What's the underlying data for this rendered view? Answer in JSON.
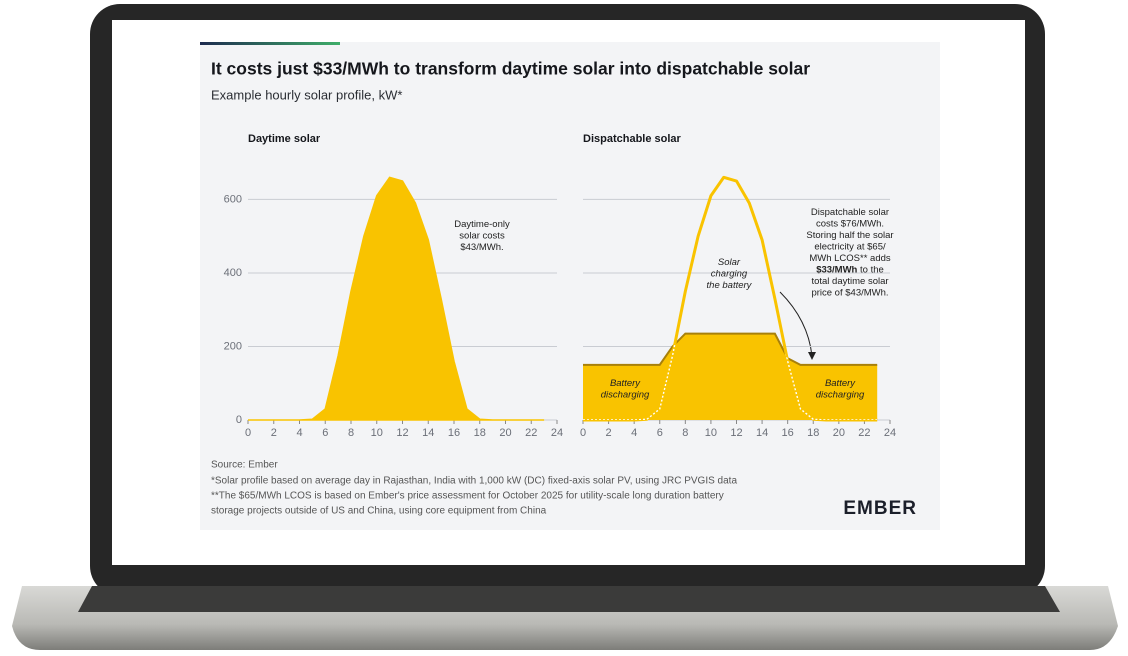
{
  "title": "It costs just $33/MWh to transform daytime solar into dispatchable solar",
  "subtitle": "Example hourly solar profile, kW*",
  "chart_data": [
    {
      "type": "area",
      "title": "Daytime solar",
      "x": [
        0,
        1,
        2,
        3,
        4,
        5,
        6,
        7,
        8,
        9,
        10,
        11,
        12,
        13,
        14,
        15,
        16,
        17,
        18,
        19,
        20,
        21,
        22,
        23
      ],
      "series": [
        {
          "color": "#f9c300",
          "values": [
            0,
            0,
            0,
            0,
            0,
            2,
            30,
            175,
            350,
            500,
            610,
            660,
            650,
            590,
            490,
            330,
            160,
            30,
            2,
            0,
            0,
            0,
            0,
            0
          ]
        }
      ],
      "xlim": [
        0,
        24
      ],
      "xticks": [
        0,
        2,
        4,
        6,
        8,
        10,
        12,
        14,
        16,
        18,
        20,
        22,
        24
      ],
      "ylim": [
        0,
        680
      ],
      "yticks": [
        0,
        200,
        400,
        600
      ],
      "ytick_labels": true,
      "grid": true,
      "annotations": [
        {
          "lines": [
            "Daytime-only",
            "solar costs",
            "$43/MWh."
          ]
        }
      ]
    },
    {
      "type": "dispatch",
      "title": "Dispatchable solar",
      "x": [
        0,
        1,
        2,
        3,
        4,
        5,
        6,
        7,
        8,
        9,
        10,
        11,
        12,
        13,
        14,
        15,
        16,
        17,
        18,
        19,
        20,
        21,
        22,
        23
      ],
      "series": [
        {
          "color": "#f9c300",
          "values": [
            0,
            0,
            0,
            0,
            0,
            2,
            30,
            175,
            350,
            500,
            610,
            660,
            650,
            590,
            490,
            330,
            160,
            30,
            2,
            0,
            0,
            0,
            0,
            0
          ]
        },
        {
          "color": "#f9c300",
          "edge_color": "#a8800a",
          "values": [
            150,
            150,
            150,
            150,
            150,
            150,
            150,
            200,
            235,
            235,
            235,
            235,
            235,
            235,
            235,
            235,
            168,
            150,
            150,
            150,
            150,
            150,
            150,
            150
          ]
        }
      ],
      "xlim": [
        0,
        24
      ],
      "xticks": [
        0,
        2,
        4,
        6,
        8,
        10,
        12,
        14,
        16,
        18,
        20,
        22,
        24
      ],
      "ylim": [
        0,
        680
      ],
      "yticks": [
        0,
        200,
        400,
        600
      ],
      "ytick_labels": false,
      "grid": true,
      "annotations": [
        {
          "lines": [
            "Battery",
            "discharging"
          ]
        },
        {
          "lines": [
            "Battery",
            "discharging"
          ]
        },
        {
          "lines": [
            "Solar",
            "charging",
            "the battery"
          ]
        },
        {
          "lines": [
            "Dispatchable solar",
            "costs $76/MWh.",
            "Storing half the solar",
            "electricity at $65/",
            "MWh LCOS** adds"
          ],
          "bold": "$33/MWh",
          "bold_tail": " to the",
          "lines_after": [
            "total daytime solar",
            "price of $43/MWh."
          ]
        }
      ]
    }
  ],
  "source": "Source: Ember",
  "notes": [
    "*Solar profile based on average day in Rajasthan, India with 1,000 kW (DC) fixed-axis solar PV, using JRC PVGIS data",
    "**The $65/MWh LCOS is based on Ember's price assessment for October 2025 for utility-scale long duration battery",
    "storage projects outside of US and China, using core equipment from China"
  ],
  "logo": "EMBER"
}
